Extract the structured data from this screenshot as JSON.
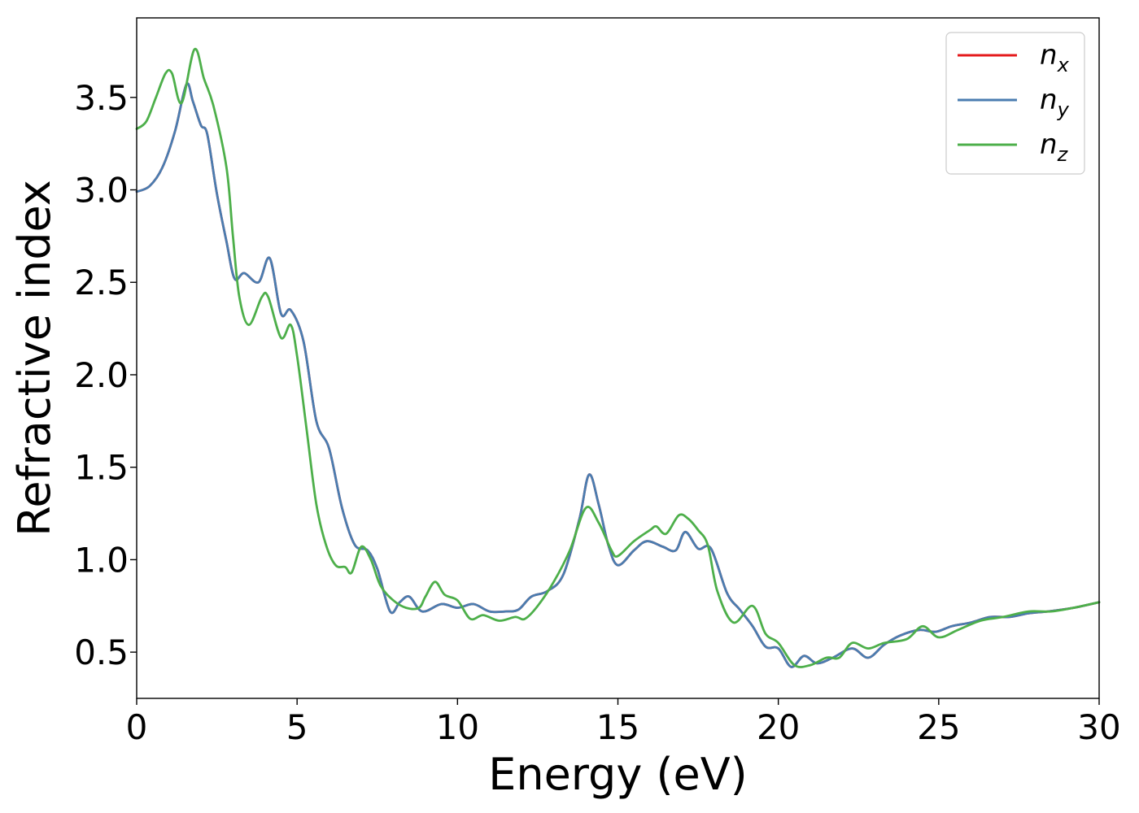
{
  "chart_data": {
    "type": "line",
    "xlabel": "Energy (eV)",
    "ylabel": "Refractive index",
    "xlim": [
      0,
      30
    ],
    "ylim": [
      0.25,
      3.93
    ],
    "xticks": [
      "0",
      "5",
      "10",
      "15",
      "20",
      "25",
      "30"
    ],
    "yticks": [
      "0.5",
      "1.0",
      "1.5",
      "2.0",
      "2.5",
      "3.0",
      "3.5"
    ],
    "grid": false,
    "legend_position": "top-right",
    "series": [
      {
        "name": "n_x",
        "base": "n",
        "subscript": "x",
        "color": "#e41a1c",
        "points": [
          [
            0,
            2.99
          ],
          [
            0.4,
            3.02
          ],
          [
            0.8,
            3.12
          ],
          [
            1.2,
            3.32
          ],
          [
            1.55,
            3.57
          ],
          [
            1.75,
            3.48
          ],
          [
            2.0,
            3.35
          ],
          [
            2.2,
            3.3
          ],
          [
            2.5,
            2.98
          ],
          [
            2.8,
            2.72
          ],
          [
            3.05,
            2.52
          ],
          [
            3.35,
            2.55
          ],
          [
            3.8,
            2.5
          ],
          [
            4.15,
            2.63
          ],
          [
            4.5,
            2.33
          ],
          [
            4.8,
            2.35
          ],
          [
            5.2,
            2.18
          ],
          [
            5.6,
            1.75
          ],
          [
            6.0,
            1.6
          ],
          [
            6.4,
            1.28
          ],
          [
            6.8,
            1.08
          ],
          [
            7.2,
            1.05
          ],
          [
            7.5,
            0.95
          ],
          [
            7.9,
            0.72
          ],
          [
            8.2,
            0.77
          ],
          [
            8.5,
            0.8
          ],
          [
            8.9,
            0.72
          ],
          [
            9.5,
            0.76
          ],
          [
            10.0,
            0.74
          ],
          [
            10.5,
            0.76
          ],
          [
            11.0,
            0.72
          ],
          [
            11.5,
            0.72
          ],
          [
            11.9,
            0.73
          ],
          [
            12.3,
            0.8
          ],
          [
            12.8,
            0.83
          ],
          [
            13.3,
            0.92
          ],
          [
            13.8,
            1.22
          ],
          [
            14.1,
            1.46
          ],
          [
            14.4,
            1.3
          ],
          [
            14.7,
            1.08
          ],
          [
            15.0,
            0.97
          ],
          [
            15.5,
            1.05
          ],
          [
            15.9,
            1.1
          ],
          [
            16.4,
            1.07
          ],
          [
            16.8,
            1.05
          ],
          [
            17.1,
            1.15
          ],
          [
            17.5,
            1.06
          ],
          [
            17.9,
            1.06
          ],
          [
            18.4,
            0.82
          ],
          [
            18.8,
            0.73
          ],
          [
            19.2,
            0.64
          ],
          [
            19.6,
            0.53
          ],
          [
            20.0,
            0.52
          ],
          [
            20.4,
            0.42
          ],
          [
            20.8,
            0.48
          ],
          [
            21.2,
            0.44
          ],
          [
            21.7,
            0.47
          ],
          [
            22.3,
            0.52
          ],
          [
            22.8,
            0.47
          ],
          [
            23.3,
            0.54
          ],
          [
            23.8,
            0.59
          ],
          [
            24.4,
            0.62
          ],
          [
            24.9,
            0.61
          ],
          [
            25.4,
            0.64
          ],
          [
            26.0,
            0.66
          ],
          [
            26.6,
            0.69
          ],
          [
            27.2,
            0.69
          ],
          [
            27.8,
            0.71
          ],
          [
            28.4,
            0.72
          ],
          [
            29.2,
            0.74
          ],
          [
            30,
            0.77
          ]
        ]
      },
      {
        "name": "n_y",
        "base": "n",
        "subscript": "y",
        "color": "#4a7db0",
        "points": [
          [
            0,
            2.99
          ],
          [
            0.4,
            3.02
          ],
          [
            0.8,
            3.12
          ],
          [
            1.2,
            3.32
          ],
          [
            1.55,
            3.57
          ],
          [
            1.75,
            3.48
          ],
          [
            2.0,
            3.35
          ],
          [
            2.2,
            3.3
          ],
          [
            2.5,
            2.98
          ],
          [
            2.8,
            2.72
          ],
          [
            3.05,
            2.52
          ],
          [
            3.35,
            2.55
          ],
          [
            3.8,
            2.5
          ],
          [
            4.15,
            2.63
          ],
          [
            4.5,
            2.33
          ],
          [
            4.8,
            2.35
          ],
          [
            5.2,
            2.18
          ],
          [
            5.6,
            1.75
          ],
          [
            6.0,
            1.6
          ],
          [
            6.4,
            1.28
          ],
          [
            6.8,
            1.08
          ],
          [
            7.2,
            1.05
          ],
          [
            7.5,
            0.95
          ],
          [
            7.9,
            0.72
          ],
          [
            8.2,
            0.77
          ],
          [
            8.5,
            0.8
          ],
          [
            8.9,
            0.72
          ],
          [
            9.5,
            0.76
          ],
          [
            10.0,
            0.74
          ],
          [
            10.5,
            0.76
          ],
          [
            11.0,
            0.72
          ],
          [
            11.5,
            0.72
          ],
          [
            11.9,
            0.73
          ],
          [
            12.3,
            0.8
          ],
          [
            12.8,
            0.83
          ],
          [
            13.3,
            0.92
          ],
          [
            13.8,
            1.22
          ],
          [
            14.1,
            1.46
          ],
          [
            14.4,
            1.3
          ],
          [
            14.7,
            1.08
          ],
          [
            15.0,
            0.97
          ],
          [
            15.5,
            1.05
          ],
          [
            15.9,
            1.1
          ],
          [
            16.4,
            1.07
          ],
          [
            16.8,
            1.05
          ],
          [
            17.1,
            1.15
          ],
          [
            17.5,
            1.06
          ],
          [
            17.9,
            1.06
          ],
          [
            18.4,
            0.82
          ],
          [
            18.8,
            0.73
          ],
          [
            19.2,
            0.64
          ],
          [
            19.6,
            0.53
          ],
          [
            20.0,
            0.52
          ],
          [
            20.4,
            0.42
          ],
          [
            20.8,
            0.48
          ],
          [
            21.2,
            0.44
          ],
          [
            21.7,
            0.47
          ],
          [
            22.3,
            0.52
          ],
          [
            22.8,
            0.47
          ],
          [
            23.3,
            0.54
          ],
          [
            23.8,
            0.59
          ],
          [
            24.4,
            0.62
          ],
          [
            24.9,
            0.61
          ],
          [
            25.4,
            0.64
          ],
          [
            26.0,
            0.66
          ],
          [
            26.6,
            0.69
          ],
          [
            27.2,
            0.69
          ],
          [
            27.8,
            0.71
          ],
          [
            28.4,
            0.72
          ],
          [
            29.2,
            0.74
          ],
          [
            30,
            0.77
          ]
        ]
      },
      {
        "name": "n_z",
        "base": "n",
        "subscript": "z",
        "color": "#4daf4a",
        "points": [
          [
            0,
            3.33
          ],
          [
            0.3,
            3.37
          ],
          [
            0.6,
            3.5
          ],
          [
            0.9,
            3.63
          ],
          [
            1.1,
            3.63
          ],
          [
            1.4,
            3.47
          ],
          [
            1.8,
            3.76
          ],
          [
            2.1,
            3.6
          ],
          [
            2.4,
            3.45
          ],
          [
            2.8,
            3.12
          ],
          [
            3.0,
            2.75
          ],
          [
            3.2,
            2.42
          ],
          [
            3.5,
            2.27
          ],
          [
            3.9,
            2.42
          ],
          [
            4.1,
            2.42
          ],
          [
            4.5,
            2.2
          ],
          [
            4.8,
            2.27
          ],
          [
            5.0,
            2.1
          ],
          [
            5.3,
            1.7
          ],
          [
            5.6,
            1.3
          ],
          [
            5.9,
            1.08
          ],
          [
            6.2,
            0.97
          ],
          [
            6.5,
            0.96
          ],
          [
            6.7,
            0.93
          ],
          [
            7.0,
            1.07
          ],
          [
            7.3,
            1.0
          ],
          [
            7.6,
            0.86
          ],
          [
            8.0,
            0.78
          ],
          [
            8.4,
            0.74
          ],
          [
            8.8,
            0.74
          ],
          [
            9.0,
            0.8
          ],
          [
            9.3,
            0.88
          ],
          [
            9.6,
            0.81
          ],
          [
            10.0,
            0.78
          ],
          [
            10.4,
            0.68
          ],
          [
            10.8,
            0.7
          ],
          [
            11.3,
            0.67
          ],
          [
            11.8,
            0.69
          ],
          [
            12.1,
            0.68
          ],
          [
            12.5,
            0.75
          ],
          [
            13.0,
            0.88
          ],
          [
            13.5,
            1.05
          ],
          [
            14.0,
            1.28
          ],
          [
            14.4,
            1.2
          ],
          [
            14.8,
            1.05
          ],
          [
            15.0,
            1.02
          ],
          [
            15.5,
            1.1
          ],
          [
            16.0,
            1.16
          ],
          [
            16.2,
            1.18
          ],
          [
            16.5,
            1.14
          ],
          [
            16.9,
            1.24
          ],
          [
            17.2,
            1.22
          ],
          [
            17.5,
            1.16
          ],
          [
            17.8,
            1.08
          ],
          [
            18.1,
            0.83
          ],
          [
            18.6,
            0.66
          ],
          [
            19.2,
            0.75
          ],
          [
            19.6,
            0.6
          ],
          [
            20.0,
            0.55
          ],
          [
            20.5,
            0.43
          ],
          [
            21.0,
            0.43
          ],
          [
            21.5,
            0.47
          ],
          [
            21.9,
            0.47
          ],
          [
            22.3,
            0.55
          ],
          [
            22.8,
            0.52
          ],
          [
            23.3,
            0.55
          ],
          [
            24.0,
            0.57
          ],
          [
            24.5,
            0.64
          ],
          [
            25.0,
            0.58
          ],
          [
            25.6,
            0.62
          ],
          [
            26.3,
            0.67
          ],
          [
            27.0,
            0.69
          ],
          [
            27.8,
            0.72
          ],
          [
            28.5,
            0.72
          ],
          [
            29.2,
            0.74
          ],
          [
            30,
            0.77
          ]
        ]
      }
    ]
  }
}
